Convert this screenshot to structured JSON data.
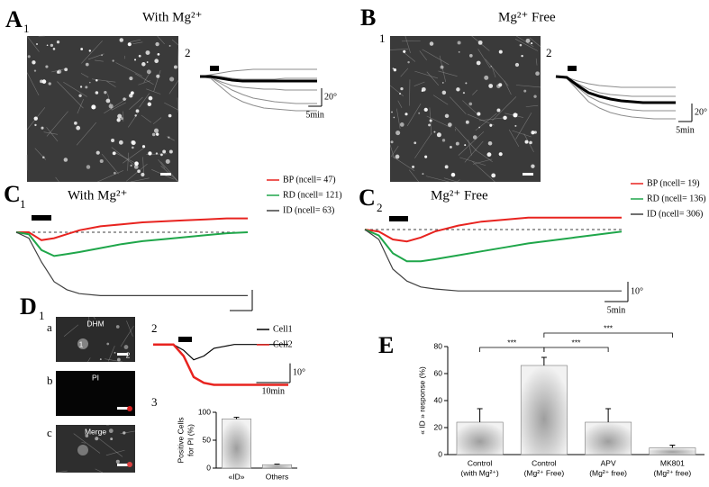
{
  "panels": {
    "A": {
      "letter": "A",
      "sub": "1",
      "title": "With Mg²⁺",
      "inset": "2"
    },
    "B": {
      "letter": "B",
      "sub": "1",
      "title": "Mg²⁺ Free",
      "inset": "2"
    },
    "C1": {
      "letter": "C",
      "sub": "1",
      "title": "With Mg²⁺"
    },
    "C2": {
      "letter": "C",
      "sub": "2",
      "title": "Mg²⁺ Free"
    },
    "D": {
      "letter": "D",
      "sub": "1",
      "rows": [
        "a",
        "b",
        "c"
      ],
      "image_labels": [
        "DHM",
        "PI",
        "Merge"
      ],
      "cell_labels": [
        "1",
        "2"
      ],
      "inset2": "2",
      "inset3": "3"
    },
    "E": {
      "letter": "E"
    }
  },
  "chart_data": [
    {
      "type": "line",
      "x": [
        0,
        4,
        8,
        12,
        16,
        20,
        24,
        28,
        32,
        36,
        40,
        44
      ],
      "xlim": [
        0,
        44
      ],
      "ylim": [
        -45,
        10
      ],
      "series": [
        {
          "color": "#8c8c8c",
          "width": 1,
          "values": [
            0,
            2,
            4,
            6,
            7,
            8,
            8,
            8,
            8,
            8,
            8,
            8
          ]
        },
        {
          "color": "#8c8c8c",
          "width": 1,
          "values": [
            0,
            -1,
            -6,
            -10,
            -12,
            -13,
            -14,
            -14,
            -15,
            -15,
            -15,
            -15
          ]
        },
        {
          "color": "#8c8c8c",
          "width": 1,
          "values": [
            0,
            -2,
            -12,
            -22,
            -28,
            -32,
            -35,
            -36,
            -37,
            -38,
            -38,
            -38
          ]
        },
        {
          "color": "#8c8c8c",
          "width": 1,
          "values": [
            0,
            1,
            0,
            -2,
            -3,
            -3,
            -3,
            -3,
            -2,
            -2,
            -2,
            -2
          ]
        },
        {
          "color": "#8c8c8c",
          "width": 1,
          "values": [
            0,
            -1,
            -8,
            -15,
            -20,
            -24,
            -26,
            -28,
            -29,
            -30,
            -30,
            -30
          ]
        },
        {
          "color": "#000000",
          "width": 3,
          "values": [
            0,
            0,
            -2,
            -4,
            -5,
            -5,
            -5,
            -5,
            -5,
            -5,
            -5,
            -5
          ]
        }
      ],
      "scale_bar": {
        "x": {
          "value": 5,
          "label": "5min"
        },
        "y": {
          "value": 20,
          "label": "20°"
        }
      }
    },
    {
      "type": "line",
      "x": [
        0,
        4,
        8,
        12,
        16,
        20,
        24,
        28,
        32,
        36,
        40,
        44
      ],
      "xlim": [
        0,
        44
      ],
      "ylim": [
        -50,
        10
      ],
      "series": [
        {
          "color": "#8c8c8c",
          "width": 1,
          "values": [
            0,
            -1,
            -5,
            -8,
            -10,
            -11,
            -12,
            -12,
            -12,
            -12,
            -12,
            -12
          ]
        },
        {
          "color": "#8c8c8c",
          "width": 1,
          "values": [
            0,
            -2,
            -15,
            -28,
            -35,
            -40,
            -43,
            -45,
            -46,
            -47,
            -47,
            -47
          ]
        },
        {
          "color": "#8c8c8c",
          "width": 1,
          "values": [
            0,
            -1,
            -8,
            -14,
            -18,
            -20,
            -21,
            -22,
            -22,
            -22,
            -22,
            -22
          ]
        },
        {
          "color": "#8c8c8c",
          "width": 1,
          "values": [
            0,
            -2,
            -12,
            -22,
            -28,
            -32,
            -35,
            -37,
            -38,
            -38,
            -38,
            -38
          ]
        },
        {
          "color": "#000000",
          "width": 3,
          "values": [
            0,
            -1,
            -10,
            -18,
            -22,
            -25,
            -27,
            -28,
            -29,
            -29,
            -29,
            -29
          ]
        }
      ],
      "scale_bar": {
        "x": {
          "value": 5,
          "label": "5min"
        },
        "y": {
          "value": 20,
          "label": "20°"
        }
      }
    },
    {
      "type": "line",
      "x": [
        0,
        3,
        6,
        9,
        12,
        15,
        20,
        25,
        30,
        35,
        40,
        45,
        50,
        55
      ],
      "xlim": [
        0,
        55
      ],
      "ylim": [
        -35,
        10
      ],
      "series": [
        {
          "name": "BP (ncell= 47)",
          "color": "#e8231f",
          "width": 2,
          "values": [
            0,
            0,
            -4,
            -3,
            -1,
            1,
            3,
            4,
            5,
            5.5,
            6,
            6.5,
            7,
            7
          ]
        },
        {
          "name": "RD (ncell= 121)",
          "color": "#1fa64a",
          "width": 2,
          "values": [
            0,
            -1,
            -9,
            -12,
            -11,
            -10,
            -8,
            -6,
            -4.5,
            -3.5,
            -2.5,
            -1.5,
            -0.5,
            0
          ]
        },
        {
          "name": "ID (ncell= 63)",
          "color": "#404040",
          "width": 1.2,
          "values": [
            0,
            -3,
            -15,
            -25,
            -29,
            -31,
            -32,
            -32,
            -32,
            -32,
            -32,
            -32,
            -32,
            -32
          ]
        }
      ]
    },
    {
      "type": "line",
      "x": [
        0,
        3,
        6,
        9,
        12,
        15,
        20,
        25,
        30,
        35,
        40,
        45,
        50,
        55
      ],
      "xlim": [
        0,
        55
      ],
      "ylim": [
        -35,
        10
      ],
      "series": [
        {
          "name": "BP (ncell= 19)",
          "color": "#e8231f",
          "width": 2,
          "values": [
            0,
            -1,
            -5,
            -6,
            -4,
            -1,
            2,
            4,
            5,
            6,
            6,
            6,
            6,
            6
          ]
        },
        {
          "name": "RD (ncell= 136)",
          "color": "#1fa64a",
          "width": 2,
          "values": [
            0,
            -3,
            -12,
            -16,
            -16,
            -15,
            -13,
            -11,
            -9,
            -7,
            -5.5,
            -4,
            -2.5,
            -1
          ]
        },
        {
          "name": "ID (ncell= 306)",
          "color": "#404040",
          "width": 1.2,
          "values": [
            0,
            -5,
            -20,
            -26,
            -29,
            -30,
            -31,
            -31,
            -31,
            -31,
            -31,
            -31,
            -31,
            -31
          ]
        }
      ],
      "scale_bar": {
        "x": {
          "value": 5,
          "label": "5min"
        },
        "y": {
          "value": 10,
          "label": "10°"
        }
      }
    },
    {
      "type": "line",
      "x": [
        0,
        3,
        6,
        9,
        12,
        15,
        18,
        21,
        24,
        28,
        32,
        36,
        40
      ],
      "xlim": [
        0,
        40
      ],
      "ylim": [
        -25,
        5
      ],
      "series": [
        {
          "name": "Cell1",
          "color": "#000000",
          "width": 1.2,
          "values": [
            0,
            0,
            0,
            -3,
            -8,
            -6,
            -2,
            -1,
            0,
            0,
            0,
            0,
            0
          ]
        },
        {
          "name": "Cell2",
          "color": "#e8231f",
          "width": 2.5,
          "values": [
            0,
            0,
            0,
            -6,
            -17,
            -20,
            -21,
            -21,
            -21,
            -21,
            -21,
            -21,
            -21
          ]
        }
      ],
      "scale_bar": {
        "x": {
          "value": 10,
          "label": "10min"
        },
        "y": {
          "value": 10,
          "label": "10°"
        }
      }
    },
    {
      "type": "bar",
      "categories": [
        "«ID»",
        "Others"
      ],
      "values": [
        88,
        6
      ],
      "errors": [
        3,
        1
      ],
      "ylim": [
        0,
        100
      ],
      "yticks": [
        0,
        50,
        100
      ],
      "ylabel": [
        "Positive Cells",
        "for PI (%)"
      ],
      "color": "#f2f2f2",
      "center_color": "#9e9e9e"
    },
    {
      "type": "bar",
      "categories": [
        [
          "Control",
          "(with Mg²⁺)"
        ],
        [
          "Control",
          "(Mg²⁺ Free)"
        ],
        [
          "APV",
          "(Mg²⁺ free)"
        ],
        [
          "MK801",
          "(Mg²⁺ free)"
        ]
      ],
      "values": [
        24,
        66,
        24,
        5
      ],
      "errors": [
        10,
        6,
        10,
        2
      ],
      "ylim": [
        0,
        80
      ],
      "yticks": [
        0,
        20,
        40,
        60,
        80
      ],
      "ylabel": [
        "« ID » response (%)"
      ],
      "color": "#f2f2f2",
      "center_color": "#9e9e9e",
      "significance": [
        "***",
        "***",
        "***"
      ]
    }
  ]
}
